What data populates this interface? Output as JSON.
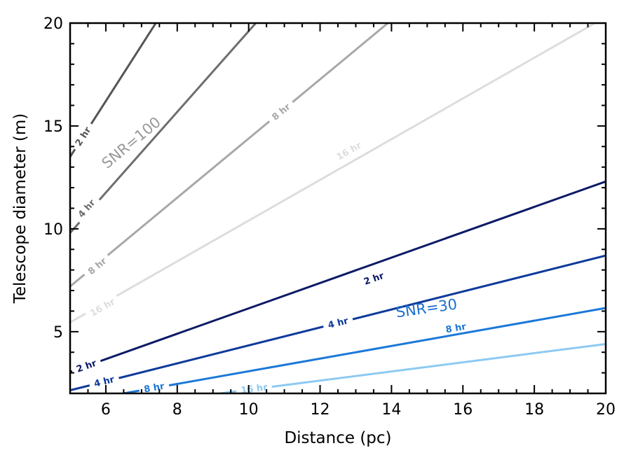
{
  "chart_data": {
    "type": "line",
    "title": "",
    "xlabel": "Distance (pc)",
    "ylabel": "Telescope diameter (m)",
    "xlim": [
      5,
      20
    ],
    "ylim": [
      2,
      20
    ],
    "x_ticks": [
      6,
      8,
      10,
      12,
      14,
      16,
      18,
      20
    ],
    "y_ticks": [
      5,
      10,
      15,
      20
    ],
    "grid": false,
    "groups": [
      {
        "label": "SNR=100",
        "label_color": "#999999",
        "label_position": [
          6.8,
          14.0
        ],
        "series": [
          {
            "name": "2 hr",
            "color": "#555555",
            "x": [
              5.0,
              7.4
            ],
            "y": [
              13.5,
              20.0
            ],
            "label_at": [
              5.35,
              14.5
            ]
          },
          {
            "name": "4 hr",
            "color": "#6e6e6e",
            "x": [
              5.0,
              10.2
            ],
            "y": [
              9.8,
              20.0
            ],
            "label_at": [
              5.45,
              11.0
            ]
          },
          {
            "name": "8 hr",
            "color": "#a8a8a8",
            "x": [
              5.0,
              13.9
            ],
            "y": [
              7.2,
              20.0
            ],
            "label_at": [
              10.9,
              15.7
            ],
            "label2_at": [
              5.75,
              8.2
            ]
          },
          {
            "name": "16 hr",
            "color": "#dddddd",
            "x": [
              5.0,
              19.7
            ],
            "y": [
              5.45,
              20.0
            ],
            "label_at": [
              12.8,
              13.8
            ],
            "label2_at": [
              5.9,
              6.2
            ]
          }
        ]
      },
      {
        "label": "SNR=30",
        "label_color": "#1a6fcf",
        "label_position": [
          15.0,
          5.9
        ],
        "series": [
          {
            "name": "2 hr",
            "color": "#0c1a66",
            "x": [
              5.0,
              20.0
            ],
            "y": [
              3.05,
              12.3
            ],
            "label_at": [
              13.5,
              7.6
            ],
            "label2_at": [
              5.45,
              3.35
            ]
          },
          {
            "name": "4 hr",
            "color": "#0d3a9a",
            "x": [
              5.0,
              20.0
            ],
            "y": [
              2.15,
              8.7
            ],
            "label_at": [
              12.5,
              5.45
            ],
            "label2_at": [
              5.95,
              2.6
            ]
          },
          {
            "name": "8 hr",
            "color": "#1b78d8",
            "x": [
              6.5,
              20.0
            ],
            "y": [
              2.0,
              6.15
            ],
            "label_at": [
              15.8,
              5.2
            ],
            "label2_at": [
              7.35,
              2.3
            ]
          },
          {
            "name": "16 hr",
            "color": "#8ccaf2",
            "x": [
              9.2,
              20.0
            ],
            "y": [
              2.0,
              4.4
            ],
            "label_at": [
              10.15,
              2.25
            ]
          }
        ]
      }
    ]
  }
}
